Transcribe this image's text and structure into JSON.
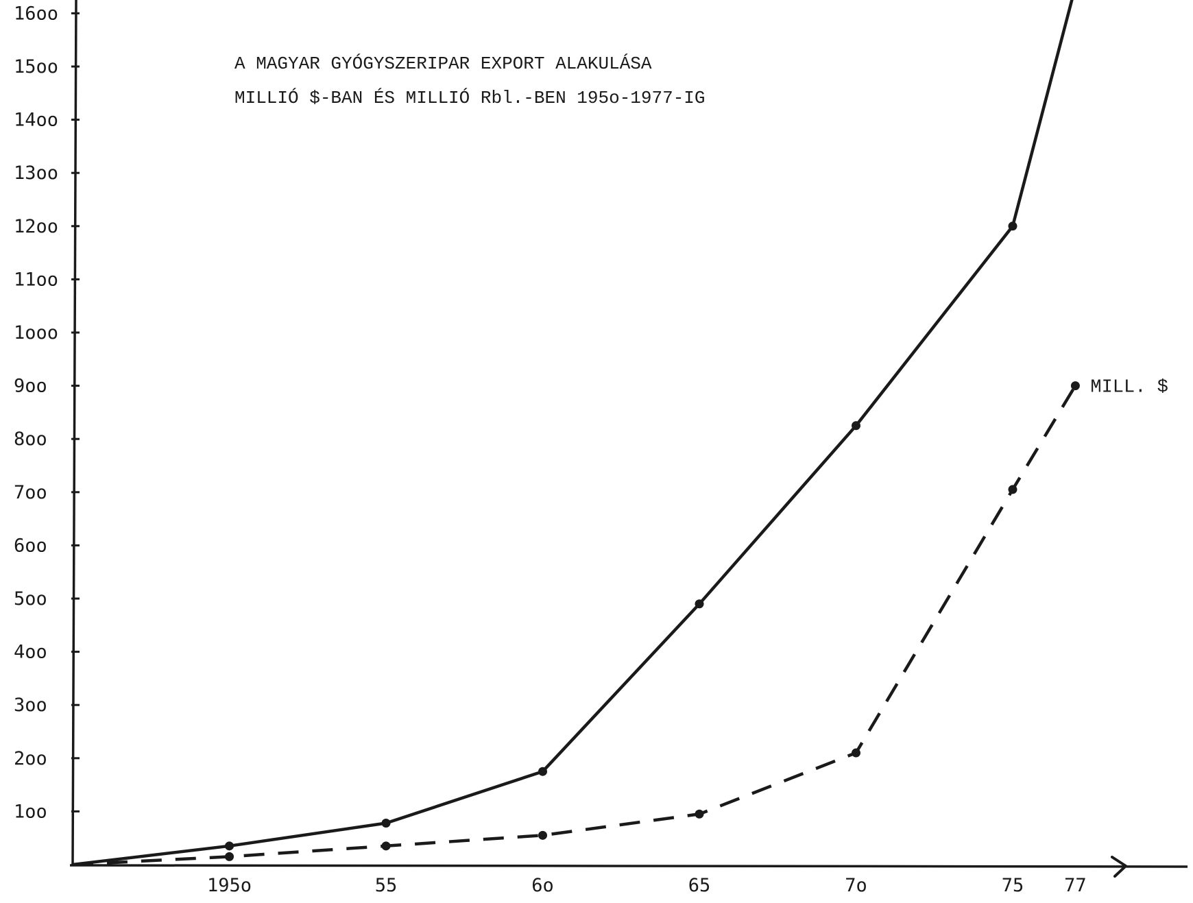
{
  "chart_data": {
    "type": "line",
    "title": "A MAGYAR GYÓGYSZERIPAR EXPORT ALAKULÁSA",
    "subtitle": "MILLIÓ $-BAN ÉS MILLIÓ Rbl.-BEN  195o-1977-IG",
    "xlabel": "",
    "ylabel": "",
    "xlim": [
      1945,
      1983
    ],
    "ylim": [
      0,
      1600
    ],
    "grid": false,
    "y_ticks": [
      {
        "value": 100,
        "label": "1oo"
      },
      {
        "value": 200,
        "label": "2oo"
      },
      {
        "value": 300,
        "label": "3oo"
      },
      {
        "value": 400,
        "label": "4oo"
      },
      {
        "value": 500,
        "label": "5oo"
      },
      {
        "value": 600,
        "label": "6oo"
      },
      {
        "value": 700,
        "label": "7oo"
      },
      {
        "value": 800,
        "label": "8oo"
      },
      {
        "value": 900,
        "label": "9oo"
      },
      {
        "value": 1000,
        "label": "1ooo"
      },
      {
        "value": 1100,
        "label": "11oo"
      },
      {
        "value": 1200,
        "label": "12oo"
      },
      {
        "value": 1300,
        "label": "13oo"
      },
      {
        "value": 1400,
        "label": "14oo"
      },
      {
        "value": 1500,
        "label": "15oo"
      },
      {
        "value": 1600,
        "label": "16oo"
      }
    ],
    "x_ticks": [
      {
        "value": 1950,
        "label": "195o"
      },
      {
        "value": 1955,
        "label": "55"
      },
      {
        "value": 1960,
        "label": "6o"
      },
      {
        "value": 1965,
        "label": "65"
      },
      {
        "value": 1970,
        "label": "7o"
      },
      {
        "value": 1975,
        "label": "75"
      },
      {
        "value": 1977,
        "label": "77"
      }
    ],
    "series": [
      {
        "name": "",
        "style": "solid",
        "x": [
          1945,
          1950,
          1955,
          1960,
          1965,
          1970,
          1975,
          1977
        ],
        "values": [
          0,
          35,
          78,
          175,
          490,
          825,
          1200,
          1650
        ]
      },
      {
        "name": "MILL. $",
        "style": "dashed",
        "x": [
          1945,
          1950,
          1955,
          1960,
          1965,
          1970,
          1975,
          1977
        ],
        "values": [
          0,
          15,
          35,
          55,
          95,
          210,
          705,
          900
        ]
      }
    ]
  },
  "colors": {
    "ink": "#1a1a1a",
    "paper": "#ffffff"
  }
}
